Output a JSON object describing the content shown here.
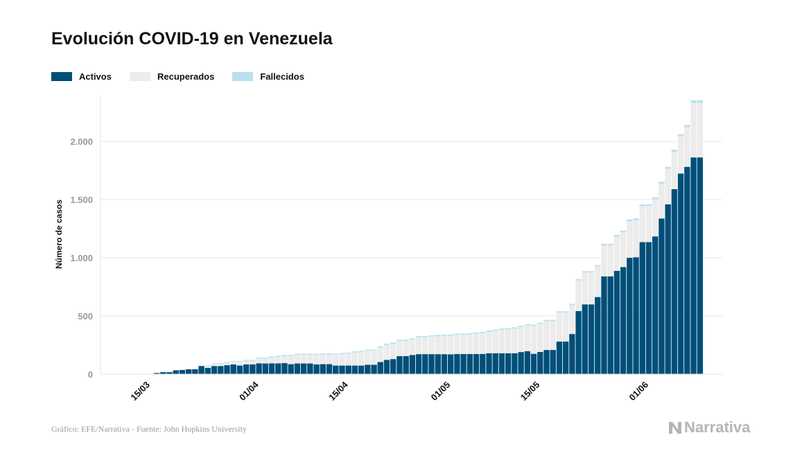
{
  "title": "Evolución COVID-19 en Venezuela",
  "footer": {
    "source": "Gráfico: EFE/Narrativa - Fuente: John Hopkins University"
  },
  "brand": {
    "name": "Narrativa"
  },
  "colors": {
    "activos": "#004f79",
    "recuperados": "#ececec",
    "fallecidos": "#b8e0f0",
    "grid": "#e6e6e6",
    "tick": "#999999"
  },
  "chart_data": {
    "type": "bar",
    "stacked": true,
    "ylabel": "Número de casos",
    "ylim": [
      0,
      2400
    ],
    "yticks": [
      {
        "value": 0,
        "label": "0"
      },
      {
        "value": 500,
        "label": "500"
      },
      {
        "value": 1000,
        "label": "1.000"
      },
      {
        "value": 1500,
        "label": "1.500"
      },
      {
        "value": 2000,
        "label": "2.000"
      }
    ],
    "xtick_labels": [
      {
        "index": 3,
        "label": "15/03"
      },
      {
        "index": 20,
        "label": "01/04"
      },
      {
        "index": 34,
        "label": "15/04"
      },
      {
        "index": 50,
        "label": "01/05"
      },
      {
        "index": 64,
        "label": "15/05"
      },
      {
        "index": 81,
        "label": "01/06"
      }
    ],
    "legend": [
      "Activos",
      "Recuperados",
      "Fallecidos"
    ],
    "legend_position": "top-left",
    "series": [
      {
        "name": "Activos",
        "values": [
          0,
          0,
          0,
          2,
          10,
          17,
          17,
          33,
          36,
          42,
          42,
          70,
          54,
          70,
          70,
          77,
          84,
          74,
          84,
          84,
          93,
          92,
          93,
          93,
          95,
          86,
          92,
          92,
          92,
          84,
          86,
          86,
          74,
          74,
          74,
          74,
          74,
          81,
          81,
          104,
          122,
          130,
          155,
          155,
          165,
          172,
          172,
          172,
          172,
          172,
          170,
          173,
          173,
          173,
          173,
          174,
          180,
          180,
          180,
          180,
          180,
          190,
          198,
          175,
          191,
          208,
          208,
          280,
          280,
          345,
          542,
          600,
          600,
          663,
          841,
          841,
          888,
          920,
          1000,
          1005,
          1135,
          1135,
          1184,
          1338,
          1460,
          1590,
          1724,
          1782,
          1863,
          1863
        ]
      },
      {
        "name": "Recuperados",
        "values": [
          0,
          0,
          0,
          0,
          0,
          0,
          0,
          0,
          0,
          0,
          0,
          0,
          15,
          15,
          17,
          22,
          22,
          32,
          32,
          32,
          40,
          40,
          50,
          55,
          60,
          70,
          74,
          74,
          74,
          82,
          82,
          84,
          92,
          98,
          103,
          113,
          118,
          120,
          120,
          125,
          130,
          132,
          132,
          132,
          132,
          145,
          145,
          152,
          155,
          157,
          160,
          165,
          165,
          170,
          175,
          180,
          185,
          193,
          202,
          205,
          212,
          215,
          222,
          240,
          242,
          248,
          248,
          250,
          250,
          250,
          265,
          275,
          275,
          265,
          265,
          265,
          295,
          300,
          315,
          320,
          310,
          310,
          320,
          298,
          305,
          320,
          320,
          340,
          469,
          469
        ]
      },
      {
        "name": "Fallecidos",
        "values": [
          0,
          0,
          0,
          0,
          0,
          0,
          0,
          0,
          0,
          0,
          0,
          0,
          7,
          7,
          7,
          7,
          7,
          7,
          7,
          7,
          9,
          9,
          9,
          9,
          9,
          9,
          9,
          9,
          9,
          9,
          9,
          9,
          9,
          9,
          9,
          9,
          9,
          9,
          9,
          10,
          10,
          10,
          10,
          10,
          10,
          10,
          10,
          10,
          10,
          10,
          10,
          10,
          10,
          10,
          10,
          10,
          10,
          10,
          10,
          10,
          10,
          10,
          10,
          10,
          10,
          10,
          10,
          10,
          10,
          10,
          10,
          10,
          10,
          10,
          14,
          14,
          14,
          14,
          14,
          14,
          14,
          14,
          17,
          17,
          17,
          18,
          18,
          20,
          22,
          22
        ]
      }
    ]
  }
}
